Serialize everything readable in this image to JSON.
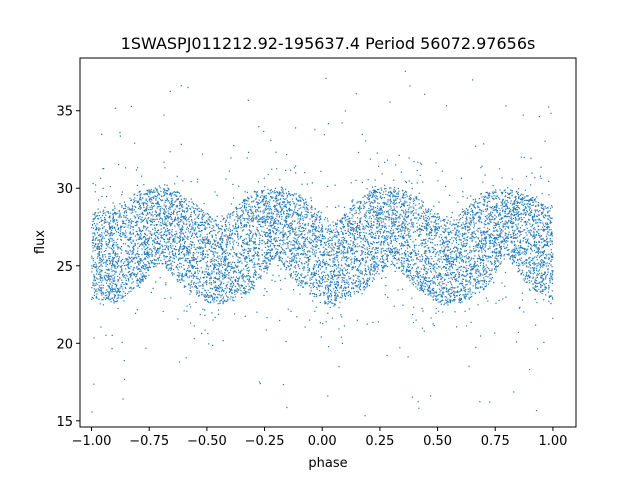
{
  "chart_data": {
    "type": "scatter",
    "title": "1SWASPJ011212.92-195637.4 Period 56072.97656s",
    "xlabel": "phase",
    "ylabel": "flux",
    "xlim": [
      -1.05,
      1.1
    ],
    "ylim": [
      14.6,
      38.4
    ],
    "xticks": [
      -1.0,
      -0.75,
      -0.5,
      -0.25,
      0.0,
      0.25,
      0.5,
      0.75,
      1.0
    ],
    "xtick_labels": [
      "−1.00",
      "−0.75",
      "−0.50",
      "−0.25",
      "0.00",
      "0.25",
      "0.50",
      "0.75",
      "1.00"
    ],
    "yticks": [
      15,
      20,
      25,
      30,
      35
    ],
    "ytick_labels": [
      "15",
      "20",
      "25",
      "30",
      "35"
    ],
    "grid": false,
    "legend": "none",
    "color": "#1f77b4",
    "series": [
      {
        "x_range": [
          -1.0,
          1.0
        ],
        "band_profile": {
          "phase": [
            -1.0,
            -0.9,
            -0.8,
            -0.7,
            -0.6,
            -0.5,
            -0.45,
            -0.4,
            -0.3,
            -0.2,
            -0.1,
            0.0,
            0.05,
            0.1,
            0.2,
            0.3,
            0.4,
            0.5,
            0.55,
            0.6,
            0.7,
            0.8,
            0.9,
            1.0
          ],
          "upper": [
            28.6,
            28.6,
            29.8,
            30.2,
            29.6,
            28.4,
            27.8,
            28.4,
            29.8,
            30.0,
            29.6,
            28.4,
            27.8,
            28.4,
            29.8,
            30.2,
            29.6,
            28.4,
            27.8,
            28.4,
            29.8,
            30.0,
            29.6,
            28.6
          ],
          "lower": [
            22.8,
            22.6,
            23.6,
            25.2,
            23.6,
            22.6,
            22.4,
            22.6,
            23.4,
            25.6,
            23.6,
            22.6,
            22.4,
            22.8,
            23.6,
            25.2,
            23.6,
            22.6,
            22.4,
            22.6,
            23.4,
            25.6,
            23.6,
            22.8
          ]
        },
        "outlier_range": [
          15.2,
          37.6
        ]
      }
    ]
  }
}
